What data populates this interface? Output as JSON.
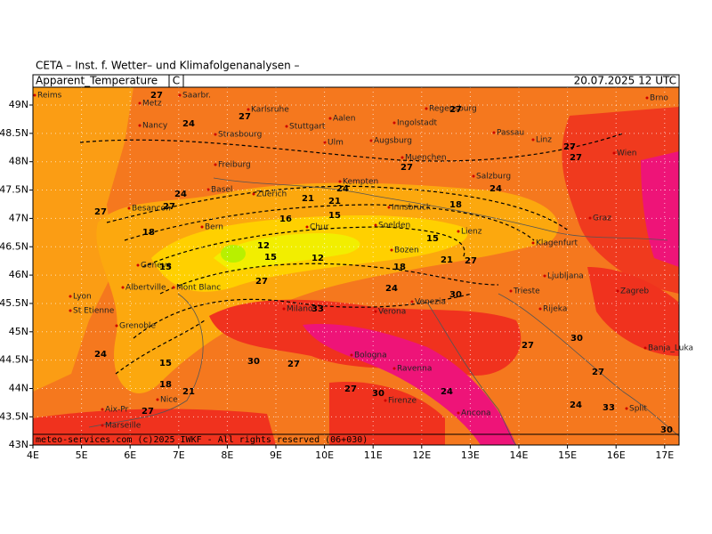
{
  "header": {
    "institute": "CETA – Inst. f. Wetter– und Klimafolgenanalysen –",
    "parameter": "Apparent_Temperature",
    "unit": "C",
    "valid": "20.07.2025 12 UTC"
  },
  "lat_ticks": [
    "49N",
    "48.5N",
    "48N",
    "47.5N",
    "47N",
    "46.5N",
    "46N",
    "45.5N",
    "45N",
    "44.5N",
    "44N",
    "43.5N",
    "43N"
  ],
  "lon_ticks": [
    "4E",
    "5E",
    "6E",
    "7E",
    "8E",
    "9E",
    "10E",
    "11E",
    "12E",
    "13E",
    "14E",
    "15E",
    "16E",
    "17E"
  ],
  "cities": [
    "Reims",
    "Metz",
    "Saarbr.",
    "Karlsruhe",
    "Regensburg",
    "Brno",
    "Nancy",
    "Stuttgart",
    "Aalen",
    "Ingolstadt",
    "Strasbourg",
    "Ulm",
    "Augsburg",
    "Passau",
    "Linz",
    "Wien",
    "Muenchen",
    "Freiburg",
    "Kempten",
    "Salzburg",
    "Basel",
    "Zuerich",
    "Besancon",
    "Innsbruck",
    "Graz",
    "Bern",
    "Chur",
    "Soelden",
    "Lienz",
    "Klagenfurt",
    "Bozen",
    "Geneve",
    "Ljubljana",
    "Lyon",
    "Albertville",
    "Mont Blanc",
    "Trieste",
    "Zagreb",
    "Verona",
    "Milano",
    "Venezia",
    "St Etienne",
    "Rijeka",
    "Grenoble",
    "Bologna",
    "Banja_Luka",
    "Ravenna",
    "Firenze",
    "Nice",
    "Aix-Pr",
    "Split",
    "Ancona",
    "Marseille"
  ],
  "contour_labels": [
    "27",
    "27",
    "24",
    "27",
    "27",
    "27",
    "24",
    "27",
    "27",
    "24",
    "24",
    "21",
    "21",
    "18",
    "27",
    "16",
    "15",
    "12",
    "18",
    "15",
    "15",
    "12",
    "18",
    "15",
    "21",
    "24",
    "27",
    "27",
    "30",
    "33",
    "30",
    "27",
    "18",
    "15",
    "21",
    "24",
    "27",
    "27",
    "24",
    "27",
    "30",
    "33",
    "24",
    "27",
    "30",
    "30"
  ],
  "footer": "meteo-services.com (c)2025 IWKF - All rights reserved (06+030)"
}
